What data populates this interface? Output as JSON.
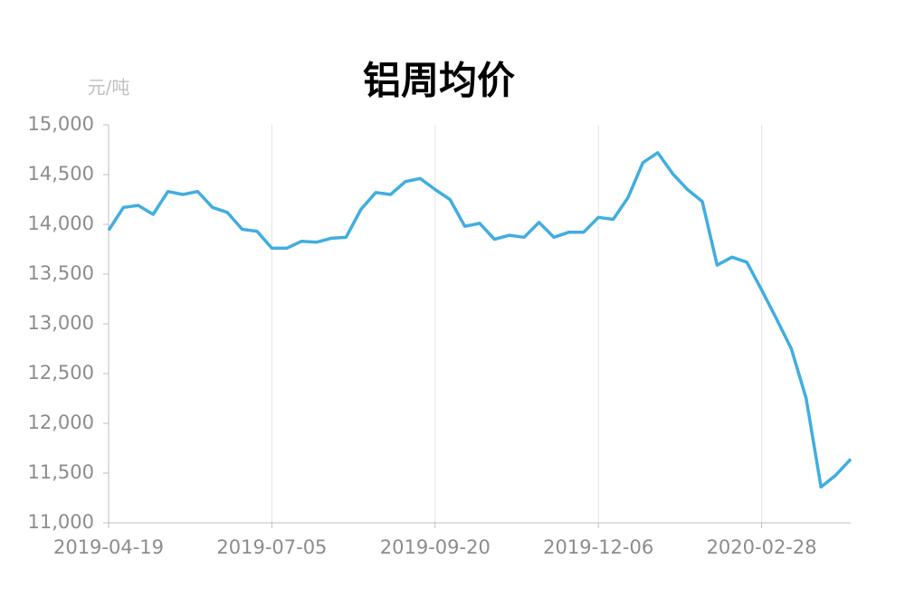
{
  "chart_data": {
    "type": "line",
    "title": "铝周均价",
    "y_label": "元/吨",
    "categories": [
      "2019-04-19",
      null,
      null,
      null,
      null,
      null,
      null,
      null,
      null,
      null,
      null,
      "2019-07-05",
      null,
      null,
      null,
      null,
      null,
      null,
      null,
      null,
      null,
      null,
      "2019-09-20",
      null,
      null,
      null,
      null,
      null,
      null,
      null,
      null,
      null,
      null,
      "2019-12-06",
      null,
      null,
      null,
      null,
      null,
      null,
      null,
      null,
      null,
      null,
      "2020-02-28",
      null,
      null,
      null,
      null,
      null,
      null
    ],
    "series": [
      {
        "name": "铝周均价",
        "color": "#41ade0",
        "values": [
          13940,
          14170,
          14190,
          14100,
          14330,
          14300,
          14330,
          14170,
          14120,
          13950,
          13930,
          13760,
          13760,
          13830,
          13820,
          13860,
          13870,
          14150,
          14320,
          14300,
          14430,
          14460,
          14350,
          14250,
          13980,
          14010,
          13850,
          13890,
          13870,
          14020,
          13870,
          13920,
          13920,
          14070,
          14050,
          14270,
          14620,
          14720,
          14510,
          14350,
          14230,
          13590,
          13670,
          13620,
          13340,
          13050,
          12750,
          12250,
          11360,
          11480,
          11640
        ]
      }
    ],
    "ylim": [
      11000,
      15000
    ],
    "yticks": [
      {
        "value": 11000,
        "label": "11,000"
      },
      {
        "value": 11500,
        "label": "11,500"
      },
      {
        "value": 12000,
        "label": "12,000"
      },
      {
        "value": 12500,
        "label": "12,500"
      },
      {
        "value": 13000,
        "label": "13,000"
      },
      {
        "value": 13500,
        "label": "13,500"
      },
      {
        "value": 14000,
        "label": "14,000"
      },
      {
        "value": 14500,
        "label": "14,500"
      },
      {
        "value": 15000,
        "label": "15,000"
      }
    ],
    "grid": true
  }
}
